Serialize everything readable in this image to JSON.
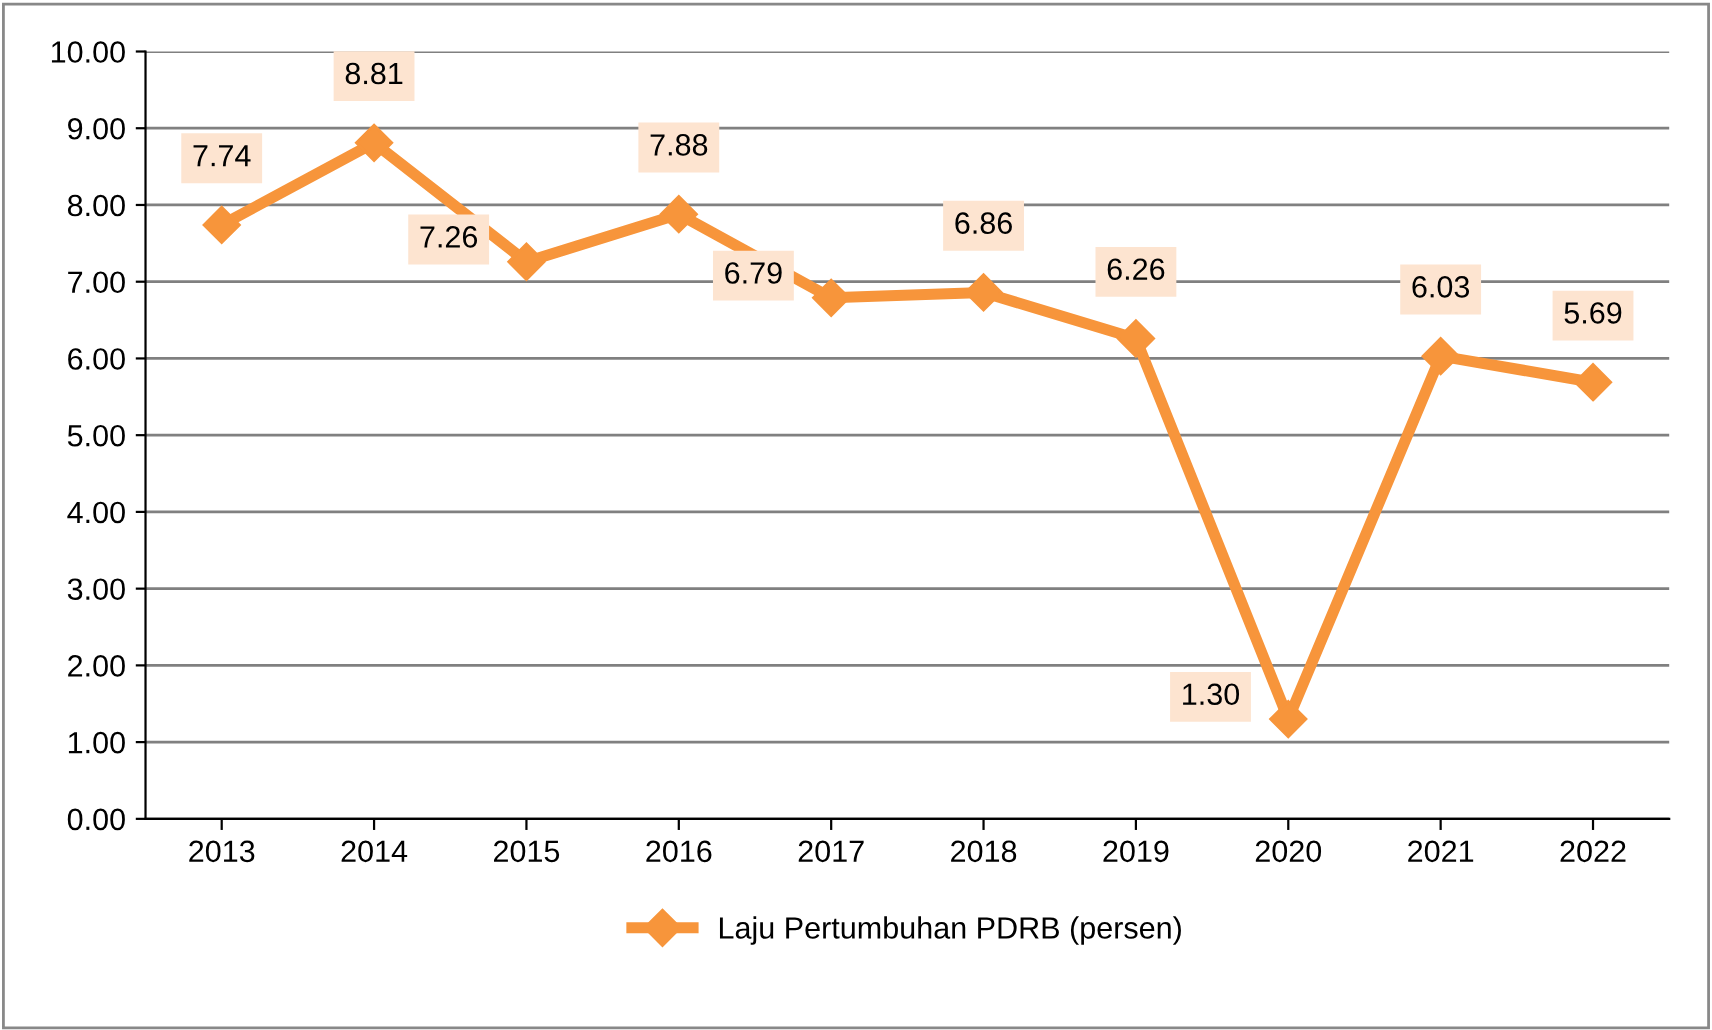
{
  "chart_data": {
    "type": "line",
    "categories": [
      "2013",
      "2014",
      "2015",
      "2016",
      "2017",
      "2018",
      "2019",
      "2020",
      "2021",
      "2022"
    ],
    "series": [
      {
        "name": "Laju Pertumbuhan PDRB (persen)",
        "color": "#f7953b",
        "values": [
          7.74,
          8.81,
          7.26,
          7.88,
          6.79,
          6.86,
          6.26,
          1.3,
          6.03,
          5.69
        ],
        "value_labels": [
          "7.74",
          "8.81",
          "7.26",
          "7.88",
          "6.79",
          "6.86",
          "6.26",
          "1.30",
          "6.03",
          "5.69"
        ]
      }
    ],
    "ylim": [
      0,
      10
    ],
    "yticks": [
      {
        "value": 0,
        "label": "0.00"
      },
      {
        "value": 1,
        "label": "1.00"
      },
      {
        "value": 2,
        "label": "2.00"
      },
      {
        "value": 3,
        "label": "3.00"
      },
      {
        "value": 4,
        "label": "4.00"
      },
      {
        "value": 5,
        "label": "5.00"
      },
      {
        "value": 6,
        "label": "6.00"
      },
      {
        "value": 7,
        "label": "7.00"
      },
      {
        "value": 8,
        "label": "8.00"
      },
      {
        "value": 9,
        "label": "9.00"
      },
      {
        "value": 10,
        "label": "10.00"
      }
    ],
    "grid": "y",
    "legend": "bottom",
    "marker": "diamond",
    "line_style": "solid"
  }
}
